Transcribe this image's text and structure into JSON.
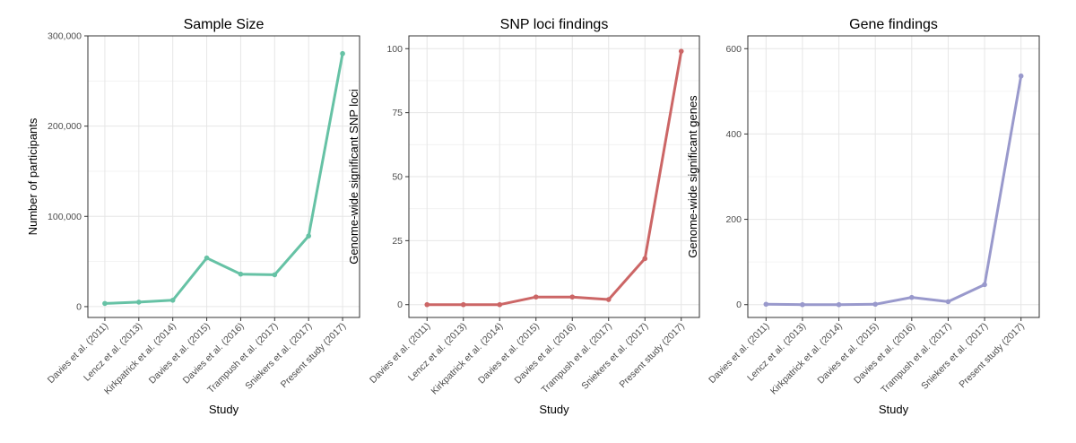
{
  "chart_data": [
    {
      "type": "line",
      "title": "Sample Size",
      "xlabel": "Study",
      "ylabel": "Number of participants",
      "categories": [
        "Davies et al. (2011)",
        "Lencz et al. (2013)",
        "Kirkpatrick et al. (2014)",
        "Davies et al. (2015)",
        "Davies et al. (2016)",
        "Trampush et al. (2017)",
        "Sniekers et al. (2017)",
        "Present study (2017)"
      ],
      "values": [
        3500,
        5000,
        7100,
        53900,
        36000,
        35300,
        78300,
        280400
      ],
      "ylim": [
        -12000,
        300000
      ],
      "yticks": [
        0,
        100000,
        200000,
        300000
      ],
      "ytick_labels": [
        "0",
        "100,000",
        "200,000",
        "300,000"
      ],
      "color": "#66c2a5",
      "grid": true,
      "legend": "none"
    },
    {
      "type": "line",
      "title": "SNP loci findings",
      "xlabel": "Study",
      "ylabel": "Genome-wide significant SNP loci",
      "categories": [
        "Davies et al. (2011)",
        "Lencz et al. (2013)",
        "Kirkpatrick et al. (2014)",
        "Davies et al. (2015)",
        "Davies et al. (2016)",
        "Trampush et al. (2017)",
        "Sniekers et al. (2017)",
        "Present study (2017)"
      ],
      "values": [
        0,
        0,
        0,
        3,
        3,
        2,
        18,
        99
      ],
      "ylim": [
        -5,
        105
      ],
      "yticks": [
        0,
        25,
        50,
        75,
        100
      ],
      "ytick_labels": [
        "0",
        "25",
        "50",
        "75",
        "100"
      ],
      "color": "#cc6666",
      "grid": true,
      "legend": "none"
    },
    {
      "type": "line",
      "title": "Gene findings",
      "xlabel": "Study",
      "ylabel": "Genome-wide significant genes",
      "categories": [
        "Davies et al. (2011)",
        "Lencz et al. (2013)",
        "Kirkpatrick et al. (2014)",
        "Davies et al. (2015)",
        "Davies et al. (2016)",
        "Trampush et al. (2017)",
        "Sniekers et al. (2017)",
        "Present study (2017)"
      ],
      "values": [
        1,
        0,
        0,
        1,
        17,
        7,
        47,
        536
      ],
      "ylim": [
        -30,
        630
      ],
      "yticks": [
        0,
        200,
        400,
        600
      ],
      "ytick_labels": [
        "0",
        "200",
        "400",
        "600"
      ],
      "color": "#9999cc",
      "grid": true,
      "legend": "none"
    }
  ]
}
